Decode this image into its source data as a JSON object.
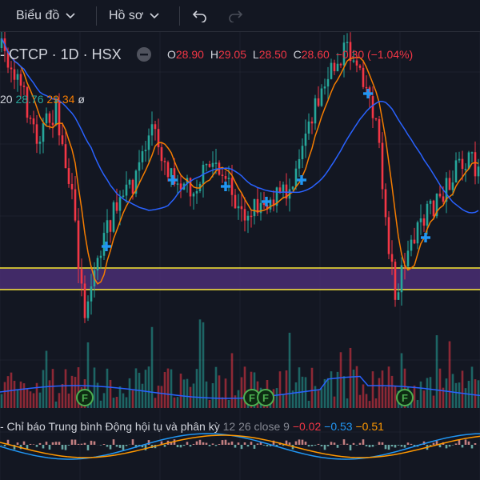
{
  "toolbar": {
    "chart_menu_label": "Biểu đồ",
    "profile_menu_label": "Hồ sơ",
    "undo_icon": "undo-arrow-icon",
    "redo_icon": "redo-arrow-icon",
    "dropdown_icon": "chevron-down-icon"
  },
  "symbol": {
    "title": "- CTCP · 1D · HSX",
    "hide_icon": "minus-circle-icon"
  },
  "ohlc": {
    "o_label": "O",
    "o_value": "28.90",
    "h_label": "H",
    "h_value": "29.05",
    "l_label": "L",
    "l_value": "28.50",
    "c_label": "C",
    "c_value": "28.60",
    "change": "−0.30 (−1.04%)"
  },
  "ma_legend": {
    "prefix": "20",
    "value1": "28.76",
    "value2": "29.34",
    "value3": "ø"
  },
  "macd_legend": {
    "title": "- Chỉ báo Trung bình Động hội tụ và phân kỳ",
    "params": "12 26 close 9",
    "hist": "−0.02",
    "macd": "−0.53",
    "signal": "−0.51"
  },
  "markers": {
    "f_label": "F"
  },
  "colors": {
    "background": "#131722",
    "up": "#26a69a",
    "down": "#f23645",
    "ma_fast": "#f57c00",
    "ma_slow": "#2962ff",
    "band_line": "#ffeb3b",
    "band_fill": "#4a2e73",
    "macd_line": "#2196f3",
    "signal_line": "#ff9800",
    "marker_green": "#4caf50",
    "plus_marker": "#2196f3"
  }
}
